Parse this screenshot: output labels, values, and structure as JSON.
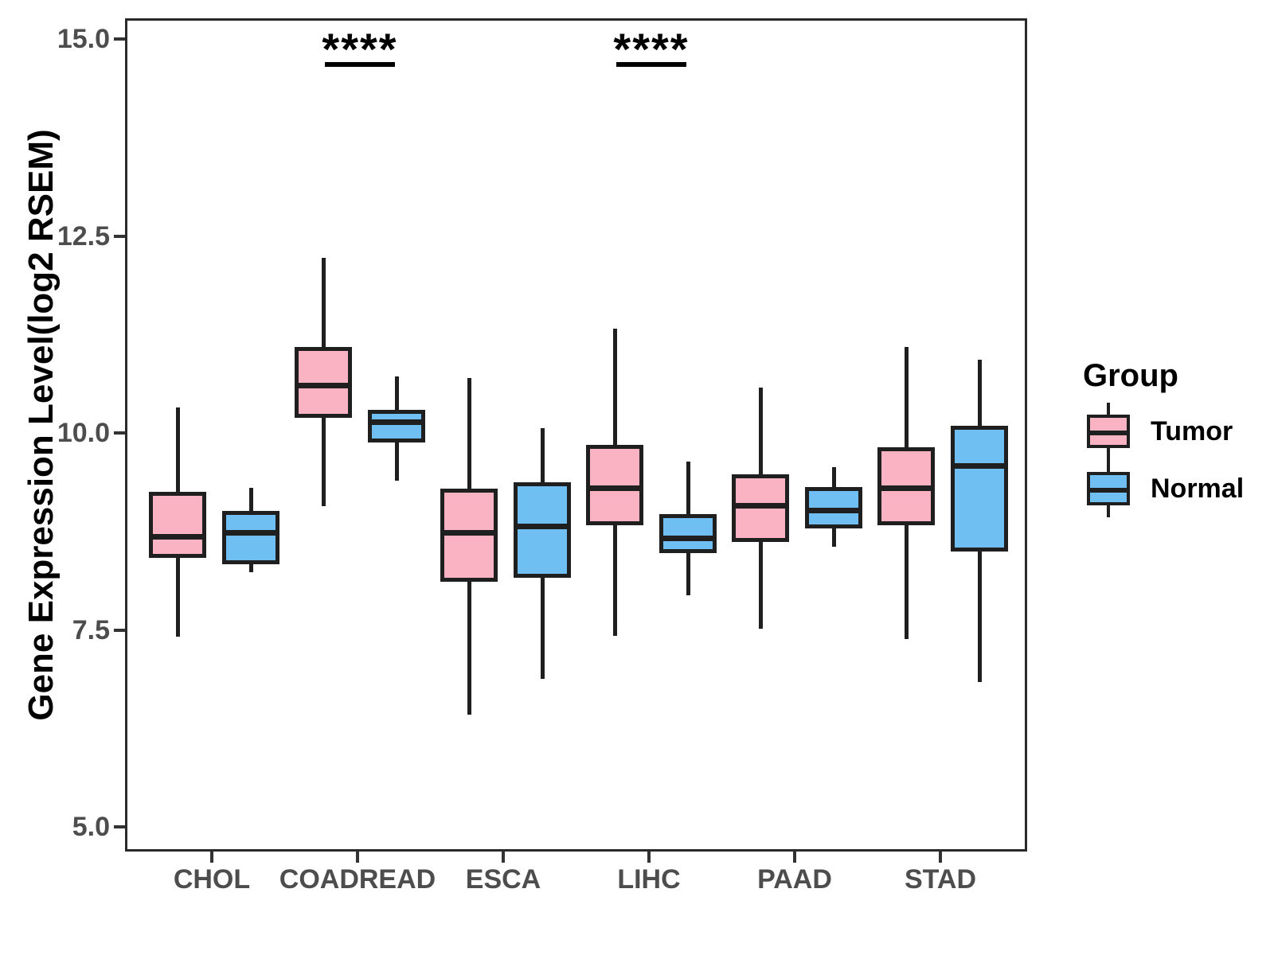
{
  "chart_data": {
    "type": "boxplot",
    "title": "",
    "xlabel": "",
    "ylabel": "Gene Expression Level(log2 RSEM)",
    "ylim": [
      5.0,
      15.0
    ],
    "grid": false,
    "ytick_values": [
      15.0,
      12.5,
      10.0,
      7.5,
      5.0
    ],
    "ytick_labels": [
      "15.0",
      "12.5",
      "10.0",
      "7.5",
      "5.0"
    ],
    "categories": [
      "CHOL",
      "COADREAD",
      "ESCA",
      "LIHC",
      "PAAD",
      "STAD"
    ],
    "legend": {
      "title": "Group",
      "position": "right",
      "entries": [
        {
          "label": "Tumor",
          "color": "#F9B3C2"
        },
        {
          "label": "Normal",
          "color": "#70BFF2"
        }
      ]
    },
    "series": [
      {
        "name": "Tumor",
        "color": "#F9B3C2",
        "boxes": [
          {
            "category": "CHOL",
            "whisker_low": 7.44,
            "q1": 8.44,
            "median": 8.71,
            "q3": 9.28,
            "whisker_high": 10.35
          },
          {
            "category": "COADREAD",
            "whisker_low": 9.1,
            "q1": 10.22,
            "median": 10.63,
            "q3": 11.12,
            "whisker_high": 12.25
          },
          {
            "category": "ESCA",
            "whisker_low": 6.45,
            "q1": 8.14,
            "median": 8.76,
            "q3": 9.32,
            "whisker_high": 10.73
          },
          {
            "category": "LIHC",
            "whisker_low": 7.45,
            "q1": 8.86,
            "median": 9.33,
            "q3": 9.88,
            "whisker_high": 11.35
          },
          {
            "category": "PAAD",
            "whisker_low": 7.55,
            "q1": 8.65,
            "median": 9.11,
            "q3": 9.51,
            "whisker_high": 10.61
          },
          {
            "category": "STAD",
            "whisker_low": 7.41,
            "q1": 8.86,
            "median": 9.33,
            "q3": 9.85,
            "whisker_high": 11.12
          }
        ]
      },
      {
        "name": "Normal",
        "color": "#70BFF2",
        "boxes": [
          {
            "category": "CHOL",
            "whisker_low": 8.26,
            "q1": 8.36,
            "median": 8.76,
            "q3": 9.04,
            "whisker_high": 9.33
          },
          {
            "category": "COADREAD",
            "whisker_low": 9.42,
            "q1": 9.91,
            "median": 10.17,
            "q3": 10.32,
            "whisker_high": 10.75
          },
          {
            "category": "ESCA",
            "whisker_low": 6.91,
            "q1": 8.19,
            "median": 8.84,
            "q3": 9.4,
            "whisker_high": 10.09
          },
          {
            "category": "LIHC",
            "whisker_low": 7.97,
            "q1": 8.51,
            "median": 8.69,
            "q3": 9.0,
            "whisker_high": 9.67
          },
          {
            "category": "PAAD",
            "whisker_low": 8.59,
            "q1": 8.82,
            "median": 9.05,
            "q3": 9.34,
            "whisker_high": 9.6
          },
          {
            "category": "STAD",
            "whisker_low": 6.87,
            "q1": 8.53,
            "median": 9.61,
            "q3": 10.12,
            "whisker_high": 10.96
          }
        ]
      }
    ],
    "annotations": [
      {
        "category": "COADREAD",
        "label": "****"
      },
      {
        "category": "LIHC",
        "label": "****"
      }
    ],
    "colors": {
      "box_border": "#1f1f1f",
      "panel_border": "#2a2a2a",
      "axis_text": "#4d4d4d",
      "annotation": "#000000"
    }
  }
}
